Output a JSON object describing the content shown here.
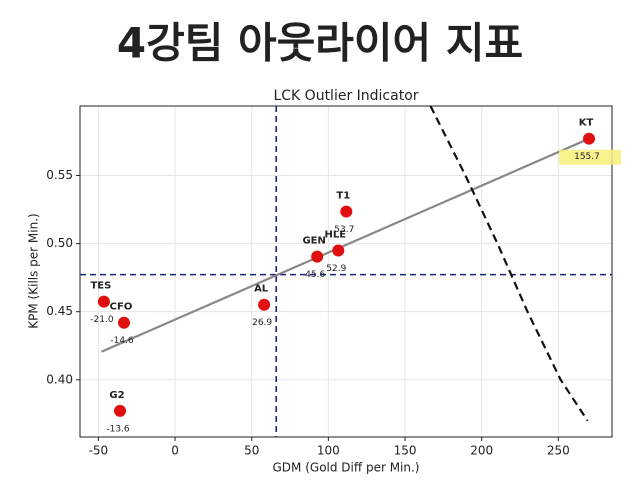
{
  "header": {
    "title": "4강팀 아웃라이어 지표"
  },
  "chart_data": {
    "type": "scatter",
    "title": "LCK Outlier Indicator",
    "xlabel": "GDM (Gold Diff per Min.)",
    "ylabel": "KPM (Kills per Min.)",
    "point_names": [
      "KT",
      "T1",
      "HLE",
      "GEN",
      "AL",
      "TES",
      "CFO",
      "G2"
    ],
    "x": [
      270,
      111.7,
      106.5,
      92.7,
      58.1,
      -46.4,
      -33.3,
      -35.9
    ],
    "values": [
      0.577,
      0.5235,
      0.4949,
      0.4904,
      0.4551,
      0.4574,
      0.4419,
      0.3772
    ],
    "point_notes": [
      "155.7",
      "53.7",
      "52.9",
      "45.6",
      "26.9",
      "-21.0",
      "-14.6",
      "-13.6"
    ],
    "highlighted": [
      "KT"
    ],
    "color": "#e01010",
    "xlim": [
      -62,
      285
    ],
    "ylim": [
      0.358,
      0.601
    ],
    "xticks": [
      -50,
      0,
      50,
      100,
      150,
      200,
      250
    ],
    "yticks": [
      {
        "value": 0.4,
        "label": "0.40"
      },
      0.45,
      {
        "value": 0.5,
        "label": "0.50"
      },
      0.55
    ],
    "grid": true,
    "reference_x": 66,
    "reference_y": 0.4772,
    "fit_line": {
      "x": [
        -48,
        270
      ],
      "y": [
        0.4206,
        0.577
      ]
    },
    "curve": {
      "x": [
        166.6,
        189.4,
        210.3,
        229.9,
        251.5,
        269.1
      ],
      "y": [
        0.601,
        0.55,
        0.5,
        0.45,
        0.4,
        0.3699
      ]
    }
  }
}
